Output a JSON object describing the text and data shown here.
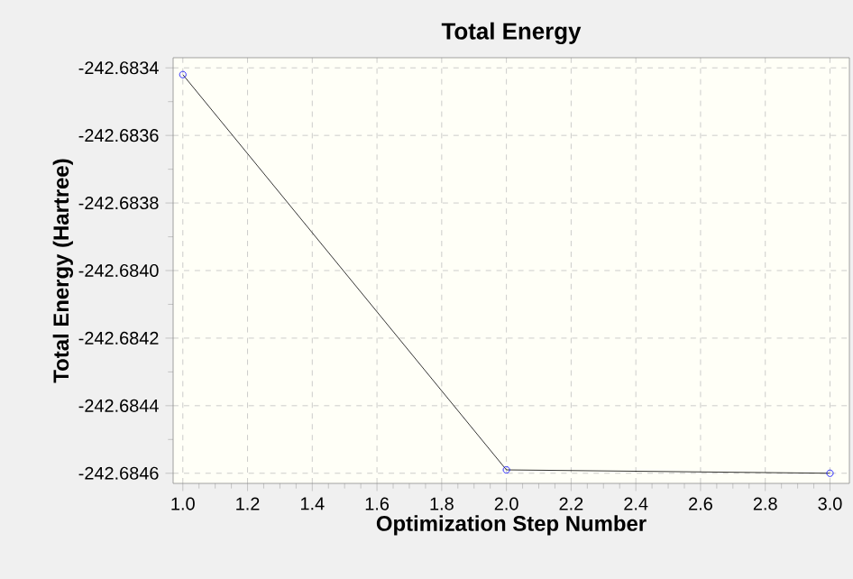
{
  "chart_data": {
    "type": "line",
    "title": "Total Energy",
    "xlabel": "Optimization Step Number",
    "ylabel": "Total Energy (Hartree)",
    "x": [
      1.0,
      2.0,
      3.0
    ],
    "series": [
      {
        "color": "#000000",
        "values": [
          -242.68342,
          -242.68459,
          -242.6846
        ]
      }
    ],
    "xlim": [
      0.97,
      3.06
    ],
    "ylim": [
      -242.68463,
      -242.68337
    ],
    "xticks": [
      {
        "value": 1.0,
        "label": "1.0"
      },
      {
        "value": 1.2,
        "label": "1.2"
      },
      {
        "value": 1.4,
        "label": "1.4"
      },
      {
        "value": 1.6,
        "label": "1.6"
      },
      {
        "value": 1.8,
        "label": "1.8"
      },
      {
        "value": 2.0,
        "label": "2.0"
      },
      {
        "value": 2.2,
        "label": "2.2"
      },
      {
        "value": 2.4,
        "label": "2.4"
      },
      {
        "value": 2.6,
        "label": "2.6"
      },
      {
        "value": 2.8,
        "label": "2.8"
      },
      {
        "value": 3.0,
        "label": "3.0"
      }
    ],
    "yticks": [
      {
        "value": -242.6834,
        "label": "-242.6834"
      },
      {
        "value": -242.6836,
        "label": "-242.6836"
      },
      {
        "value": -242.6838,
        "label": "-242.6838"
      },
      {
        "value": -242.684,
        "label": "-242.6840"
      },
      {
        "value": -242.6842,
        "label": "-242.6842"
      },
      {
        "value": -242.6844,
        "label": "-242.6844"
      },
      {
        "value": -242.6846,
        "label": "-242.6846"
      }
    ],
    "grid": true,
    "marker": "circle",
    "line_style": "solid"
  }
}
